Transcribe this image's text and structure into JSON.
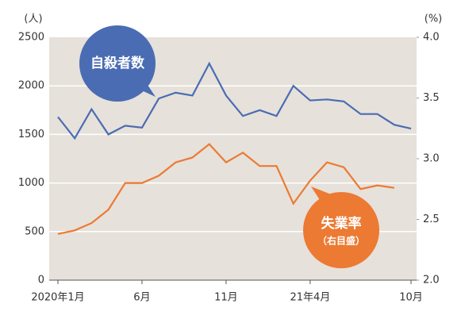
{
  "chart_data": {
    "type": "line",
    "y_label": "(人)",
    "y2_label": "(%)",
    "categories": [
      "2020年1月",
      null,
      null,
      null,
      null,
      "6月",
      null,
      null,
      null,
      null,
      "11月",
      null,
      null,
      null,
      null,
      "21年4月",
      null,
      null,
      null,
      null,
      null,
      "10月"
    ],
    "series": [
      {
        "name": "自殺者数",
        "color": "#4a6cb3",
        "values": [
          1680,
          1460,
          1760,
          1500,
          1590,
          1570,
          1870,
          1930,
          1900,
          2230,
          1900,
          1690,
          1750,
          1690,
          2000,
          1850,
          1860,
          1840,
          1710,
          1710,
          1600,
          1560
        ]
      },
      {
        "name": "失業率",
        "color": "#ec7a33",
        "axis": "y2",
        "note": "（右目盛）",
        "values": [
          2.38,
          2.41,
          2.47,
          2.58,
          2.8,
          2.8,
          2.86,
          2.97,
          3.01,
          3.12,
          2.97,
          3.05,
          2.94,
          2.94,
          2.63,
          2.82,
          2.97,
          2.93,
          2.75,
          2.78,
          2.76,
          null
        ]
      }
    ],
    "ylim": [
      0,
      2500
    ],
    "yticks": [
      0,
      500,
      1000,
      1500,
      2000,
      2500
    ],
    "y2lim": [
      2,
      4
    ],
    "y2ticks": [
      {
        "value": 2,
        "label": "2.0"
      },
      2.5,
      {
        "value": 3,
        "label": "3.0"
      },
      3.5,
      {
        "value": 4,
        "label": "4.0"
      }
    ],
    "grid": true
  }
}
